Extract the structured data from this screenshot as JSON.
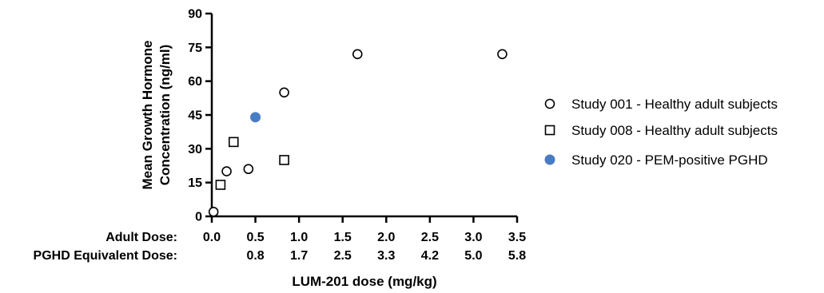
{
  "chart_data": {
    "type": "scatter",
    "ylabel_line1": "Mean Growth Hormone",
    "ylabel_line2": "Concentration (ng/ml)",
    "xlabel": "LUM-201 dose (mg/kg)",
    "ylim": [
      0,
      90
    ],
    "xlim": [
      0,
      3.5
    ],
    "y_ticks": [
      "0",
      "15",
      "30",
      "45",
      "60",
      "75",
      "90"
    ],
    "x_row1_label": "Adult Dose:",
    "x_row1_ticks": [
      "0.0",
      "0.5",
      "1.0",
      "1.5",
      "2.0",
      "2.5",
      "3.0",
      "3.5"
    ],
    "x_row2_label": "PGHD Equivalent Dose:",
    "x_row2_ticks": [
      "0.8",
      "1.7",
      "2.5",
      "3.3",
      "4.2",
      "5.0",
      "5.8"
    ],
    "legend_placement": "right",
    "grid": false,
    "series": [
      {
        "name": "Study 001 - Healthy adult subjects",
        "marker": "open-circle",
        "color": "#000000",
        "points": [
          [
            0.02,
            2
          ],
          [
            0.17,
            20
          ],
          [
            0.42,
            21
          ],
          [
            0.83,
            55
          ],
          [
            1.67,
            72
          ],
          [
            3.33,
            72
          ]
        ]
      },
      {
        "name": "Study 008 - Healthy adult subjects",
        "marker": "open-square",
        "color": "#000000",
        "points": [
          [
            0.1,
            14
          ],
          [
            0.25,
            33
          ],
          [
            0.83,
            25
          ]
        ]
      },
      {
        "name": "Study 020 - PEM-positive PGHD",
        "marker": "filled-circle",
        "color": "#4a7cc4",
        "points": [
          [
            0.5,
            44
          ]
        ]
      }
    ]
  }
}
